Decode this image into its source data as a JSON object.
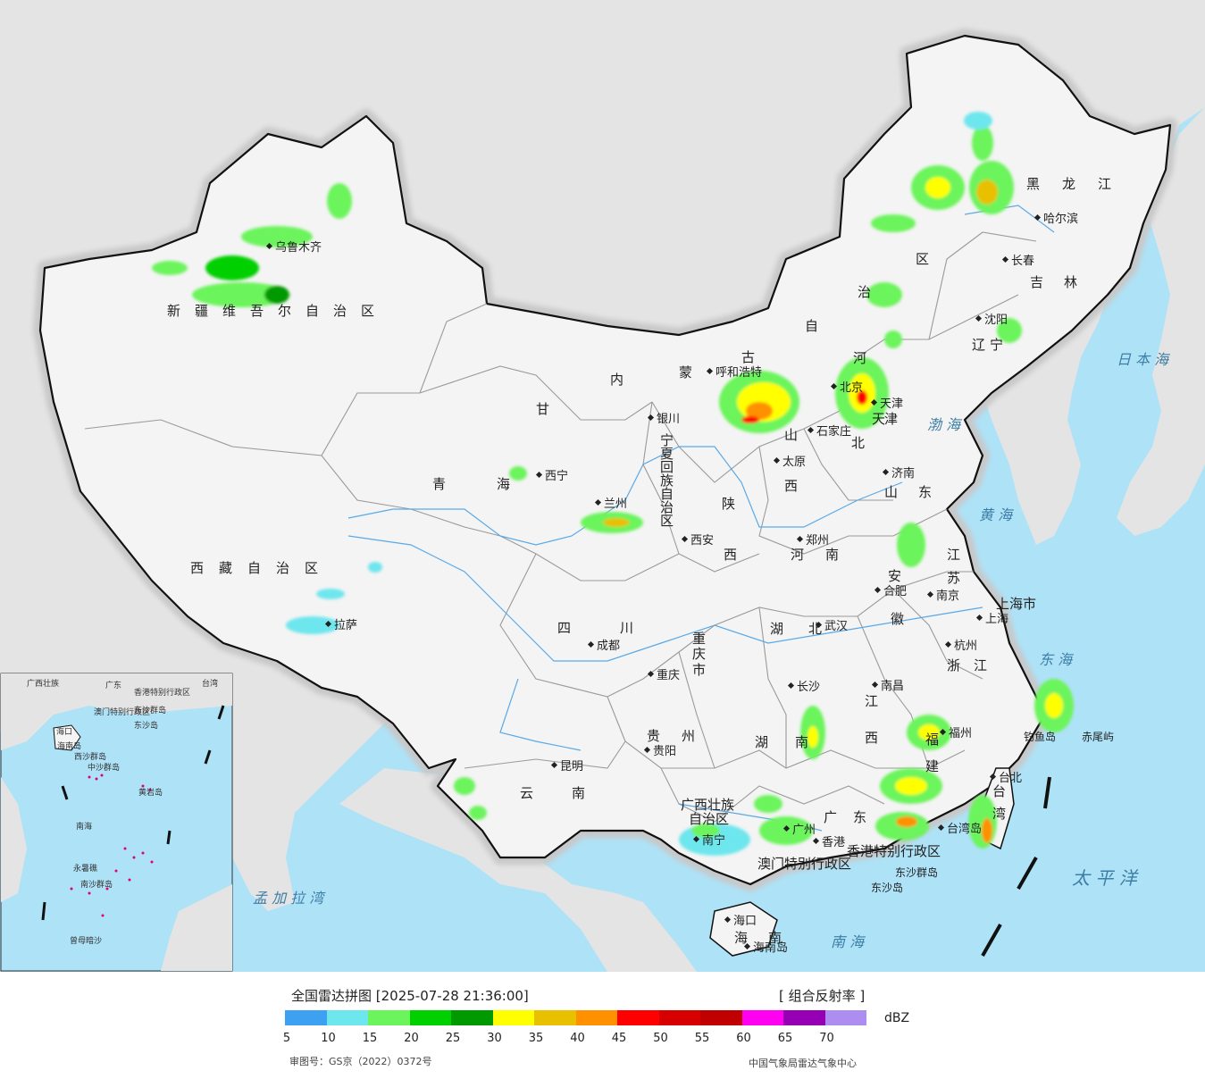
{
  "colors": {
    "sea": "#aee2f7",
    "land_neighbor": "#e4e4e4",
    "china_land": "#f4f4f4",
    "border_halo": "#c8c8c8",
    "province_line": "#9a9a9a",
    "river": "#5aa9e6",
    "scs_islands": "#e0007a"
  },
  "map": {
    "provinces": [
      {
        "name": "新疆维吾尔自治区",
        "chars": [
          "新",
          "疆",
          "维",
          "吾",
          "尔",
          "自",
          "治",
          "区"
        ]
      },
      {
        "name": "西藏自治区",
        "chars": [
          "西",
          "藏",
          "自",
          "治",
          "区"
        ]
      },
      {
        "name": "青海",
        "chars": [
          "青",
          "海"
        ]
      },
      {
        "name": "甘肃",
        "chars": [
          "甘"
        ]
      },
      {
        "name": "内蒙古自治区",
        "chars": [
          "内",
          "蒙",
          "古",
          "自",
          "治",
          "区"
        ]
      },
      {
        "name": "黑龙江",
        "chars": [
          "黑",
          "龙",
          "江"
        ]
      },
      {
        "name": "吉林",
        "chars": [
          "吉",
          "林"
        ]
      },
      {
        "name": "辽宁",
        "chars": [
          "辽",
          "宁"
        ]
      },
      {
        "name": "河北",
        "chars": [
          "河",
          "北"
        ]
      },
      {
        "name": "山西",
        "chars": [
          "山",
          "西"
        ]
      },
      {
        "name": "山东",
        "chars": [
          "山",
          "东"
        ]
      },
      {
        "name": "陕西",
        "chars": [
          "陕",
          "西"
        ]
      },
      {
        "name": "河南",
        "chars": [
          "河",
          "南"
        ]
      },
      {
        "name": "江苏",
        "chars": [
          "江",
          "苏"
        ]
      },
      {
        "name": "安徽",
        "chars": [
          "安",
          "徽"
        ]
      },
      {
        "name": "上海市",
        "chars": [
          "上海市"
        ]
      },
      {
        "name": "浙江",
        "chars": [
          "浙",
          "江"
        ]
      },
      {
        "name": "湖北",
        "chars": [
          "湖",
          "北"
        ]
      },
      {
        "name": "四川",
        "chars": [
          "四",
          "川"
        ]
      },
      {
        "name": "重庆市",
        "chars": [
          "重",
          "庆",
          "市"
        ]
      },
      {
        "name": "贵州",
        "chars": [
          "贵",
          "州"
        ]
      },
      {
        "name": "湖南",
        "chars": [
          "湖",
          "南"
        ]
      },
      {
        "name": "江西",
        "chars": [
          "江",
          "西"
        ]
      },
      {
        "name": "福建",
        "chars": [
          "福",
          "建"
        ]
      },
      {
        "name": "云南",
        "chars": [
          "云",
          "南"
        ]
      },
      {
        "name": "广西壮族自治区",
        "chars": [
          "广西壮族",
          "自治区"
        ]
      },
      {
        "name": "广东",
        "chars": [
          "广",
          "东"
        ]
      },
      {
        "name": "海南",
        "chars": [
          "海",
          "南"
        ]
      },
      {
        "name": "台湾",
        "chars": [
          "台",
          "湾"
        ]
      },
      {
        "name": "宁夏回族自治区",
        "chars": [
          "宁",
          "夏",
          "回",
          "族",
          "自",
          "治",
          "区"
        ]
      },
      {
        "name": "天津",
        "chars": [
          "天",
          "津"
        ]
      },
      {
        "name": "香港特别行政区",
        "chars": [
          "香港特别行政区"
        ]
      },
      {
        "name": "澳门特别行政区",
        "chars": [
          "澳门特别行政区"
        ]
      }
    ],
    "cities": [
      "乌鲁木齐",
      "拉萨",
      "西宁",
      "兰州",
      "银川",
      "呼和浩特",
      "石家庄",
      "太原",
      "济南",
      "西安",
      "郑州",
      "合肥",
      "南京",
      "上海",
      "杭州",
      "武汉",
      "成都",
      "重庆",
      "长沙",
      "南昌",
      "福州",
      "贵阳",
      "昆明",
      "南宁",
      "广州",
      "香港",
      "海口",
      "哈尔滨",
      "长春",
      "沈阳",
      "北京",
      "天津",
      "台北",
      "台湾岛",
      "海南岛"
    ],
    "islands": [
      "钓鱼岛",
      "赤尾屿",
      "东沙群岛",
      "东沙岛"
    ],
    "seas": [
      "日本海",
      "渤海",
      "黄海",
      "东海",
      "南海",
      "太平洋",
      "孟加拉湾"
    ],
    "inset": {
      "labels": [
        "海口",
        "海南岛",
        "东沙群岛",
        "东沙岛",
        "西沙群岛",
        "中沙群岛",
        "黄岩岛",
        "南海",
        "永暑礁",
        "南沙群岛",
        "曾母暗沙",
        "广西壮族",
        "广东",
        "台湾",
        "澳门特别行政区",
        "香港特别行政区"
      ]
    }
  },
  "legend": {
    "title": "全国雷达拼图 [2025-07-28 21:36:00]",
    "product": "[ 组合反射率 ]",
    "unit": "dBZ",
    "ticks": [
      "5",
      "10",
      "15",
      "20",
      "25",
      "30",
      "35",
      "40",
      "45",
      "50",
      "55",
      "60",
      "65",
      "70"
    ],
    "colors": [
      "#3ea0f0",
      "#6ee6ee",
      "#6cf45c",
      "#00d000",
      "#009a00",
      "#ffff00",
      "#e8c000",
      "#ff9000",
      "#ff0000",
      "#d60000",
      "#c00000",
      "#ff00f0",
      "#9600b4",
      "#ad8ef0"
    ],
    "approval": "审图号：GS京（2022）0372号",
    "credit": "中国气象局雷达气象中心"
  }
}
